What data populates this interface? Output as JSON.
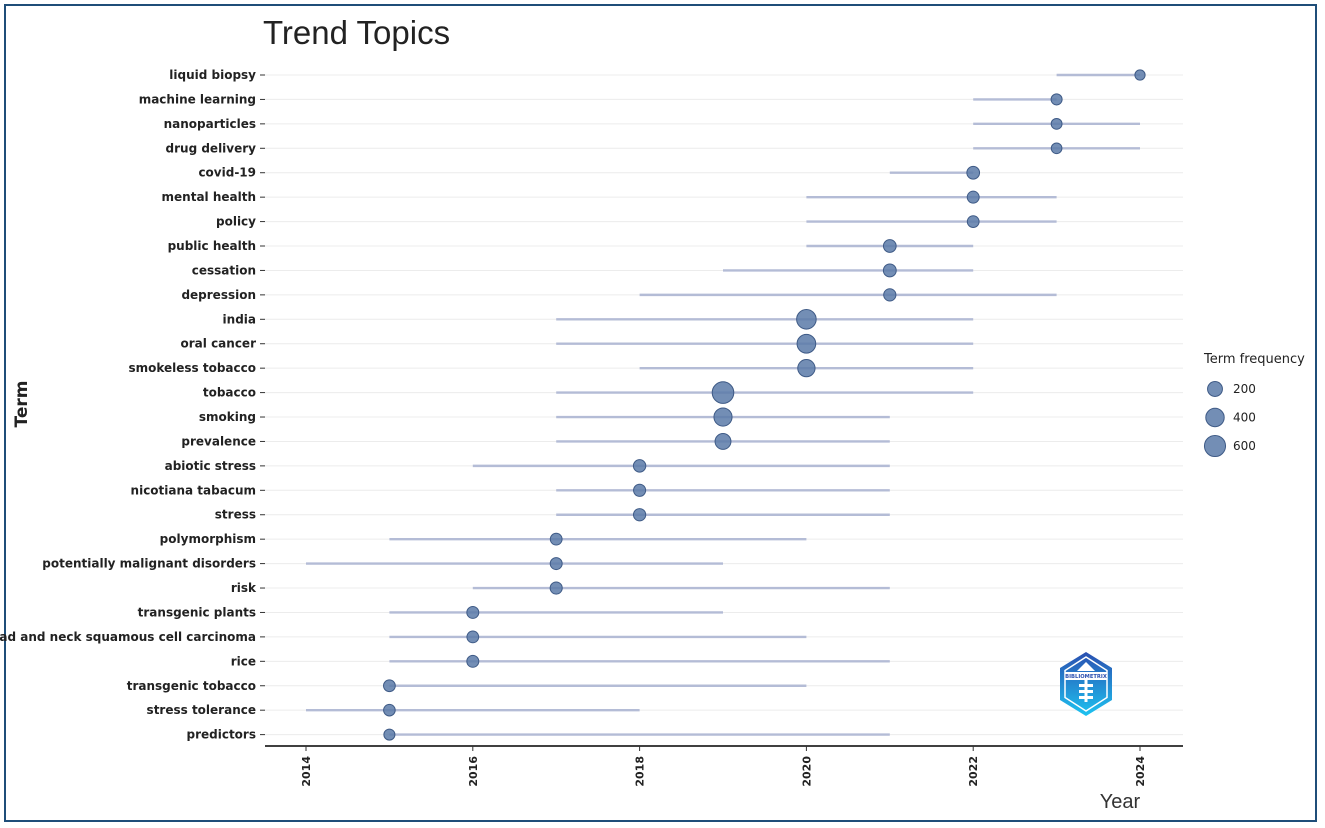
{
  "chart_data": {
    "type": "scatter",
    "title": "Trend Topics",
    "xlabel": "Year",
    "ylabel": "Term",
    "xlim": [
      2013.5,
      2024.5
    ],
    "xticks": [
      2014,
      2016,
      2018,
      2020,
      2022,
      2024
    ],
    "grid": true,
    "legend": {
      "title": "Term frequency",
      "position": "right",
      "sizes": [
        200,
        400,
        600
      ]
    },
    "colors": {
      "bubble": "#5b7aa8",
      "bubble_stroke": "#3e5a86",
      "range_line": "#b4bcd6",
      "grid": "#ececec",
      "axis": "#000000"
    },
    "terms": [
      {
        "term": "liquid biopsy",
        "q1": 2023,
        "median": 2024,
        "q3": 2024,
        "freq": 40
      },
      {
        "term": "machine learning",
        "q1": 2022,
        "median": 2023,
        "q3": 2023,
        "freq": 60
      },
      {
        "term": "nanoparticles",
        "q1": 2022,
        "median": 2023,
        "q3": 2024,
        "freq": 55
      },
      {
        "term": "drug delivery",
        "q1": 2022,
        "median": 2023,
        "q3": 2024,
        "freq": 50
      },
      {
        "term": "covid-19",
        "q1": 2021,
        "median": 2022,
        "q3": 2022,
        "freq": 110
      },
      {
        "term": "mental health",
        "q1": 2020,
        "median": 2022,
        "q3": 2023,
        "freq": 85
      },
      {
        "term": "policy",
        "q1": 2020,
        "median": 2022,
        "q3": 2023,
        "freq": 80
      },
      {
        "term": "public health",
        "q1": 2020,
        "median": 2021,
        "q3": 2022,
        "freq": 110
      },
      {
        "term": "cessation",
        "q1": 2019,
        "median": 2021,
        "q3": 2022,
        "freq": 115
      },
      {
        "term": "depression",
        "q1": 2018,
        "median": 2021,
        "q3": 2023,
        "freq": 95
      },
      {
        "term": "india",
        "q1": 2017,
        "median": 2020,
        "q3": 2022,
        "freq": 480
      },
      {
        "term": "oral cancer",
        "q1": 2017,
        "median": 2020,
        "q3": 2022,
        "freq": 420
      },
      {
        "term": "smokeless tobacco",
        "q1": 2018,
        "median": 2020,
        "q3": 2022,
        "freq": 330
      },
      {
        "term": "tobacco",
        "q1": 2017,
        "median": 2019,
        "q3": 2022,
        "freq": 640
      },
      {
        "term": "smoking",
        "q1": 2017,
        "median": 2019,
        "q3": 2021,
        "freq": 380
      },
      {
        "term": "prevalence",
        "q1": 2017,
        "median": 2019,
        "q3": 2021,
        "freq": 250
      },
      {
        "term": "abiotic stress",
        "q1": 2016,
        "median": 2018,
        "q3": 2021,
        "freq": 100
      },
      {
        "term": "nicotiana tabacum",
        "q1": 2017,
        "median": 2018,
        "q3": 2021,
        "freq": 90
      },
      {
        "term": "stress",
        "q1": 2017,
        "median": 2018,
        "q3": 2021,
        "freq": 95
      },
      {
        "term": "polymorphism",
        "q1": 2015,
        "median": 2017,
        "q3": 2020,
        "freq": 80
      },
      {
        "term": "potentially malignant disorders",
        "q1": 2014,
        "median": 2017,
        "q3": 2019,
        "freq": 85
      },
      {
        "term": "risk",
        "q1": 2016,
        "median": 2017,
        "q3": 2021,
        "freq": 90
      },
      {
        "term": "transgenic plants",
        "q1": 2015,
        "median": 2016,
        "q3": 2019,
        "freq": 85
      },
      {
        "term": "head and neck squamous cell carcinoma",
        "q1": 2015,
        "median": 2016,
        "q3": 2020,
        "freq": 80
      },
      {
        "term": "rice",
        "q1": 2015,
        "median": 2016,
        "q3": 2021,
        "freq": 85
      },
      {
        "term": "transgenic tobacco",
        "q1": 2015,
        "median": 2015,
        "q3": 2020,
        "freq": 80
      },
      {
        "term": "stress tolerance",
        "q1": 2014,
        "median": 2015,
        "q3": 2018,
        "freq": 75
      },
      {
        "term": "predictors",
        "q1": 2015,
        "median": 2015,
        "q3": 2021,
        "freq": 60
      }
    ]
  },
  "logo": {
    "name": "bibliometrix-logo",
    "text": "BIBLIOMETRIX",
    "colors": {
      "top": "#2a4fb0",
      "bottom": "#1ec3f0"
    }
  }
}
